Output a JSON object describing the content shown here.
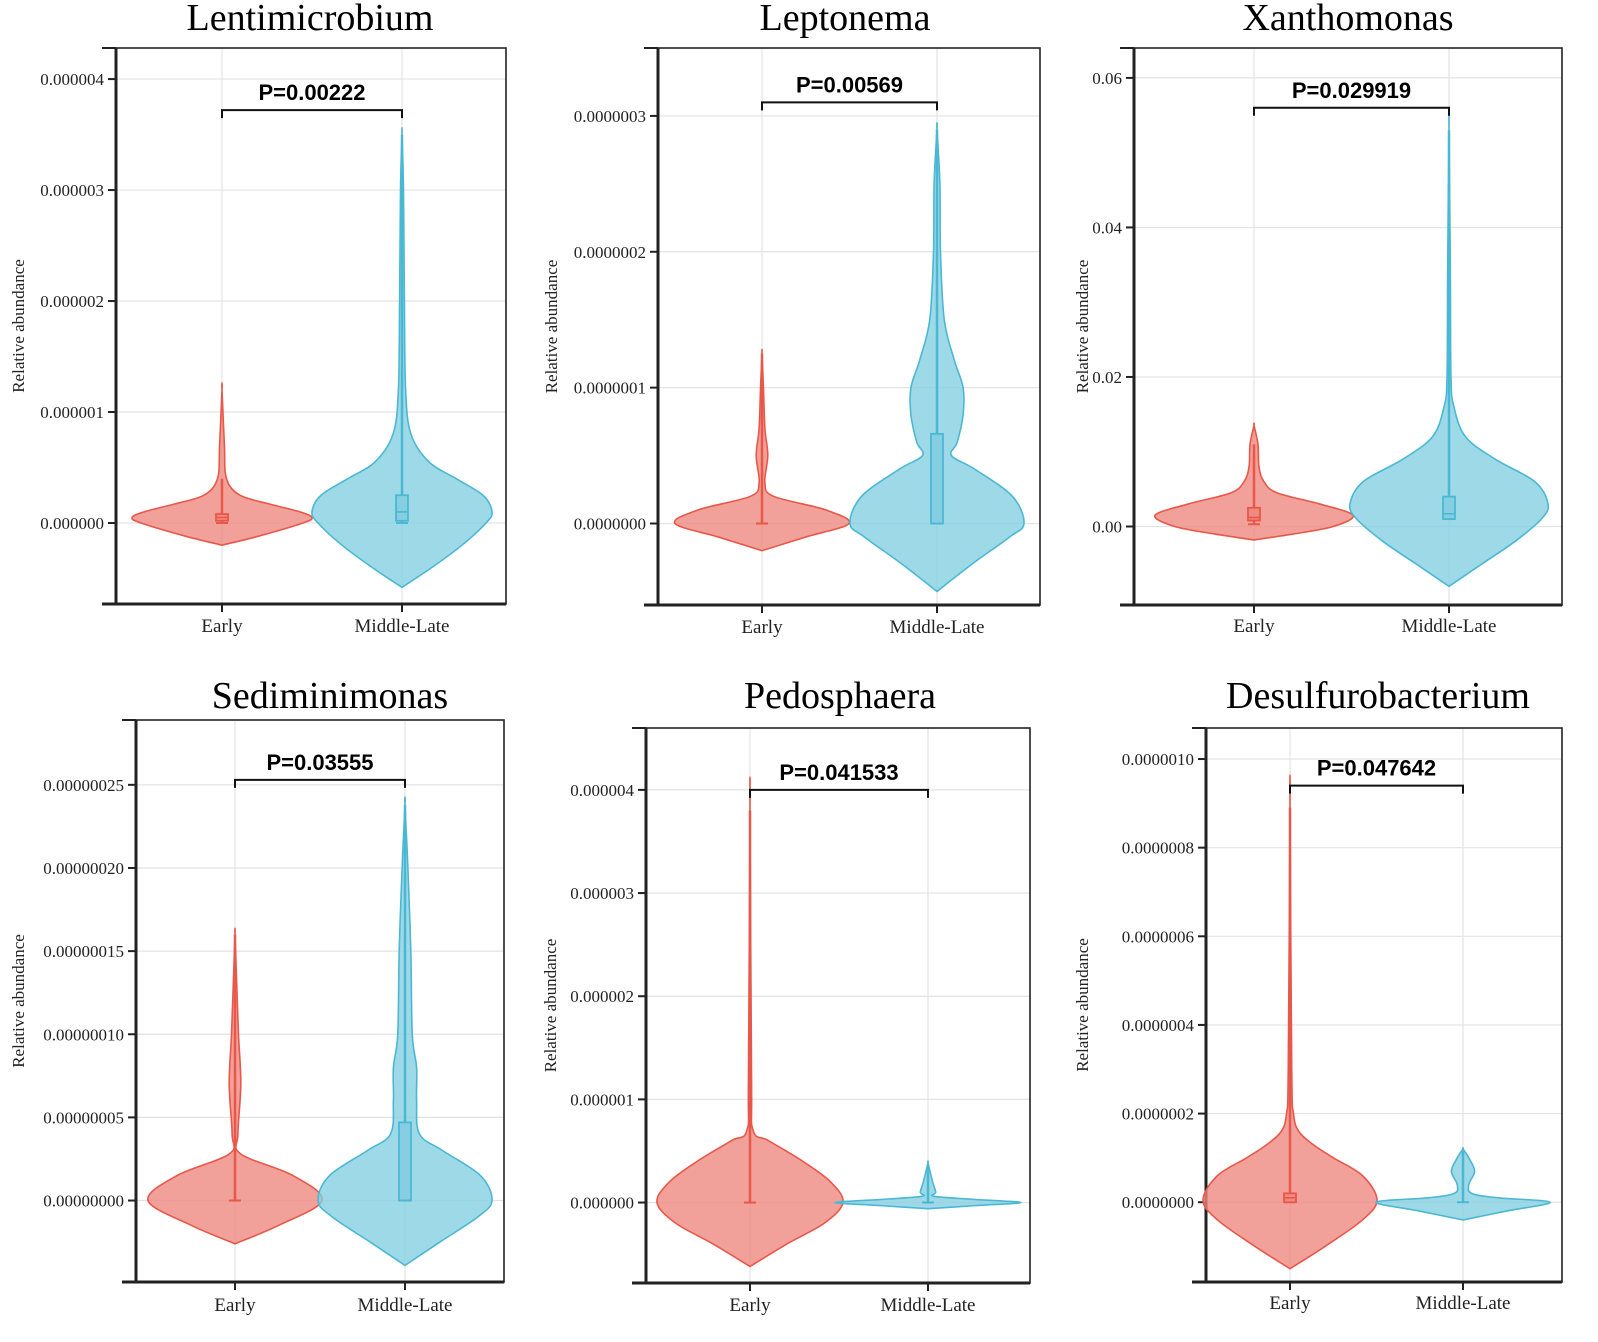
{
  "figure": {
    "colors": {
      "early": "#e8584a",
      "early_fill": "#ee8a80",
      "middle_late": "#4bb8d3",
      "middle_late_fill": "#86cfe2"
    }
  },
  "chart_data": [
    {
      "type": "violin",
      "title": "Lentimicrobium",
      "ylabel": "Relative abundance",
      "xlabel": "",
      "categories": [
        "Early",
        "Middle-Late"
      ],
      "yticks": [
        0.0,
        1e-06,
        2e-06,
        3e-06,
        4e-06
      ],
      "ytick_labels": [
        "0.000000",
        "0.000001",
        "0.000002",
        "0.000003",
        "0.000004"
      ],
      "ylim": [
        -7.3e-07,
        4.28e-06
      ],
      "grid": true,
      "p_value_label": "P=0.00222",
      "bracket_y": 3.72e-06,
      "groups": [
        {
          "name": "Early",
          "density_min": -2e-07,
          "density_max": 1.2e-06,
          "mode": 5e-08,
          "max_halfwidth": 0.3,
          "q1": 2e-08,
          "median": 5e-08,
          "q3": 8e-08,
          "whisker_low": 0.0,
          "whisker_high": 4e-07,
          "profile": [
            [
              -2e-07,
              0
            ],
            [
              -1.2e-07,
              0.12
            ],
            [
              0.0,
              0.27
            ],
            [
              5e-08,
              0.3
            ],
            [
              1e-07,
              0.26
            ],
            [
              1.7e-07,
              0.16
            ],
            [
              2.5e-07,
              0.06
            ],
            [
              4e-07,
              0.015
            ],
            [
              7e-07,
              0.008
            ],
            [
              1.2e-06,
              0
            ]
          ]
        },
        {
          "name": "Middle-Late",
          "density_min": -5.8e-07,
          "density_max": 3.5e-06,
          "mode": 1e-07,
          "max_halfwidth": 0.3,
          "q1": 2e-08,
          "median": 1e-07,
          "q3": 2.5e-07,
          "whisker_low": 0.0,
          "whisker_high": 3.5e-06,
          "profile": [
            [
              -5.8e-07,
              0
            ],
            [
              -4e-07,
              0.1
            ],
            [
              -2e-07,
              0.2
            ],
            [
              0.0,
              0.28
            ],
            [
              1e-07,
              0.3
            ],
            [
              2.5e-07,
              0.27
            ],
            [
              4e-07,
              0.18
            ],
            [
              5.5e-07,
              0.09
            ],
            [
              8e-07,
              0.03
            ],
            [
              1.2e-06,
              0.012
            ],
            [
              2e-06,
              0.008
            ],
            [
              3e-06,
              0.005
            ],
            [
              3.5e-06,
              0
            ]
          ]
        }
      ]
    },
    {
      "type": "violin",
      "title": "Leptonema",
      "ylabel": "Relative abundance",
      "xlabel": "",
      "categories": [
        "Early",
        "Middle-Late"
      ],
      "yticks": [
        0.0,
        1e-07,
        2e-07,
        3e-07
      ],
      "ytick_labels": [
        "0.0000000",
        "0.0000001",
        "0.0000002",
        "0.0000003"
      ],
      "ylim": [
        -6e-08,
        3.5e-07
      ],
      "grid": true,
      "p_value_label": "P=0.00569",
      "bracket_y": 3.1e-07,
      "groups": [
        {
          "name": "Early",
          "density_min": -2e-08,
          "density_max": 1.25e-07,
          "mode": 0.0,
          "max_halfwidth": 0.3,
          "q1": 0.0,
          "median": 0.0,
          "q3": 0.0,
          "whisker_low": 0.0,
          "whisker_high": 1.25e-07,
          "profile": [
            [
              -2e-08,
              0
            ],
            [
              -1e-08,
              0.15
            ],
            [
              0.0,
              0.3
            ],
            [
              1e-08,
              0.22
            ],
            [
              2e-08,
              0.04
            ],
            [
              3e-08,
              0.01
            ],
            [
              5e-08,
              0.02
            ],
            [
              7e-08,
              0.01
            ],
            [
              1e-07,
              0.005
            ],
            [
              1.25e-07,
              0
            ]
          ]
        },
        {
          "name": "Middle-Late",
          "density_min": -5e-08,
          "density_max": 2.9e-07,
          "mode": 0.0,
          "max_halfwidth": 0.3,
          "q1": 0.0,
          "median": 0.0,
          "q3": 6.6e-08,
          "whisker_low": 0.0,
          "whisker_high": 2.9e-07,
          "profile": [
            [
              -5e-08,
              0
            ],
            [
              -3e-08,
              0.12
            ],
            [
              -1e-08,
              0.25
            ],
            [
              0.0,
              0.3
            ],
            [
              2e-08,
              0.26
            ],
            [
              4e-08,
              0.13
            ],
            [
              5e-08,
              0.05
            ],
            [
              6e-08,
              0.07
            ],
            [
              8e-08,
              0.09
            ],
            [
              1e-07,
              0.09
            ],
            [
              1.2e-07,
              0.06
            ],
            [
              1.5e-07,
              0.025
            ],
            [
              2e-07,
              0.012
            ],
            [
              2.5e-07,
              0.01
            ],
            [
              2.9e-07,
              0
            ]
          ]
        }
      ]
    },
    {
      "type": "violin",
      "title": "Xanthomonas",
      "ylabel": "Relative abundance",
      "xlabel": "",
      "categories": [
        "Early",
        "Middle-Late"
      ],
      "yticks": [
        0.0,
        0.02,
        0.04,
        0.06
      ],
      "ytick_labels": [
        "0.00",
        "0.02",
        "0.04",
        "0.06"
      ],
      "ylim": [
        -0.0105,
        0.064
      ],
      "grid": true,
      "p_value_label": "P=0.029919",
      "bracket_y": 0.056,
      "groups": [
        {
          "name": "Early",
          "density_min": -0.0018,
          "density_max": 0.0135,
          "mode": 0.0015,
          "max_halfwidth": 0.3,
          "q1": 0.0008,
          "median": 0.0012,
          "q3": 0.0025,
          "whisker_low": 0.0003,
          "whisker_high": 0.011,
          "profile": [
            [
              -0.0018,
              0
            ],
            [
              -0.001,
              0.12
            ],
            [
              0.0,
              0.24
            ],
            [
              0.0015,
              0.3
            ],
            [
              0.003,
              0.2
            ],
            [
              0.0045,
              0.07
            ],
            [
              0.006,
              0.03
            ],
            [
              0.008,
              0.015
            ],
            [
              0.011,
              0.012
            ],
            [
              0.0135,
              0
            ]
          ]
        },
        {
          "name": "Middle-Late",
          "density_min": -0.008,
          "density_max": 0.053,
          "mode": 0.003,
          "max_halfwidth": 0.3,
          "q1": 0.001,
          "median": 0.0017,
          "q3": 0.004,
          "whisker_low": 0.001,
          "whisker_high": 0.053,
          "profile": [
            [
              -0.008,
              0
            ],
            [
              -0.005,
              0.1
            ],
            [
              -0.002,
              0.2
            ],
            [
              0.001,
              0.28
            ],
            [
              0.003,
              0.3
            ],
            [
              0.006,
              0.26
            ],
            [
              0.009,
              0.14
            ],
            [
              0.012,
              0.05
            ],
            [
              0.016,
              0.015
            ],
            [
              0.02,
              0.006
            ],
            [
              0.035,
              0.004
            ],
            [
              0.053,
              0
            ]
          ]
        }
      ]
    },
    {
      "type": "violin",
      "title": "Sediminimonas",
      "ylabel": "Relative abundance",
      "xlabel": "",
      "categories": [
        "Early",
        "Middle-Late"
      ],
      "yticks": [
        0.0,
        5e-08,
        1e-07,
        1.5e-07,
        2e-07,
        2.5e-07
      ],
      "ytick_labels": [
        "0.00000000",
        "0.00000005",
        "0.00000010",
        "0.00000015",
        "0.00000020",
        "0.00000025"
      ],
      "ylim": [
        -4.9e-08,
        2.89e-07
      ],
      "grid": true,
      "p_value_label": "P=0.03555",
      "bracket_y": 2.53e-07,
      "groups": [
        {
          "name": "Early",
          "density_min": -2.6e-08,
          "density_max": 1.6e-07,
          "mode": 0.0,
          "max_halfwidth": 0.3,
          "q1": 0.0,
          "median": 0.0,
          "q3": 0.0,
          "whisker_low": 0.0,
          "whisker_high": 1.6e-07,
          "profile": [
            [
              -2.6e-08,
              0
            ],
            [
              -1.5e-08,
              0.15
            ],
            [
              0.0,
              0.3
            ],
            [
              1.5e-08,
              0.2
            ],
            [
              2.8e-08,
              0.02
            ],
            [
              4e-08,
              0.01
            ],
            [
              7e-08,
              0.02
            ],
            [
              1e-07,
              0.012
            ],
            [
              1.3e-07,
              0.006
            ],
            [
              1.6e-07,
              0
            ]
          ]
        },
        {
          "name": "Middle-Late",
          "density_min": -3.9e-08,
          "density_max": 2.38e-07,
          "mode": 0.0,
          "max_halfwidth": 0.3,
          "q1": 0.0,
          "median": 0.0,
          "q3": 4.7e-08,
          "whisker_low": 0.0,
          "whisker_high": 2.38e-07,
          "profile": [
            [
              -3.9e-08,
              0
            ],
            [
              -2.5e-08,
              0.12
            ],
            [
              -1e-08,
              0.25
            ],
            [
              0.0,
              0.3
            ],
            [
              1.5e-08,
              0.26
            ],
            [
              3e-08,
              0.13
            ],
            [
              4e-08,
              0.05
            ],
            [
              6e-08,
              0.04
            ],
            [
              8e-08,
              0.04
            ],
            [
              1e-07,
              0.025
            ],
            [
              1.5e-07,
              0.02
            ],
            [
              2e-07,
              0.01
            ],
            [
              2.38e-07,
              0
            ]
          ]
        }
      ]
    },
    {
      "type": "violin",
      "title": "Pedosphaera",
      "ylabel": "Relative abundance",
      "xlabel": "",
      "categories": [
        "Early",
        "Middle-Late"
      ],
      "yticks": [
        0.0,
        1e-06,
        2e-06,
        3e-06,
        4e-06
      ],
      "ytick_labels": [
        "0.000000",
        "0.000001",
        "0.000002",
        "0.000003",
        "0.000004"
      ],
      "ylim": [
        -7.8e-07,
        4.6e-06
      ],
      "grid": true,
      "p_value_label": "P=0.041533",
      "bracket_y": 4e-06,
      "groups": [
        {
          "name": "Early",
          "density_min": -6.2e-07,
          "density_max": 3.8e-06,
          "mode": 0.0,
          "max_halfwidth": 0.3,
          "q1": 0.0,
          "median": 0.0,
          "q3": 0.0,
          "whisker_low": 0.0,
          "whisker_high": 3.8e-06,
          "profile": [
            [
              -6.2e-07,
              0
            ],
            [
              -4e-07,
              0.12
            ],
            [
              -2e-07,
              0.24
            ],
            [
              0.0,
              0.3
            ],
            [
              2e-07,
              0.26
            ],
            [
              4e-07,
              0.17
            ],
            [
              6e-07,
              0.06
            ],
            [
              7e-07,
              0.01
            ],
            [
              1.2e-06,
              0.005
            ],
            [
              3.8e-06,
              0
            ]
          ]
        },
        {
          "name": "Middle-Late",
          "density_min": -6e-08,
          "density_max": 3.8e-07,
          "mode": 0.0,
          "max_halfwidth": 0.3,
          "q1": 0.0,
          "median": 0.0,
          "q3": 0.0,
          "whisker_low": 0.0,
          "whisker_high": 3.8e-07,
          "profile": [
            [
              -6e-08,
              0
            ],
            [
              -3e-08,
              0.15
            ],
            [
              0.0,
              0.3
            ],
            [
              3e-08,
              0.15
            ],
            [
              6e-08,
              0.02
            ],
            [
              1e-07,
              0.025
            ],
            [
              2e-07,
              0.015
            ],
            [
              3.8e-07,
              0
            ]
          ]
        }
      ]
    },
    {
      "type": "violin",
      "title": "Desulfurobacterium",
      "ylabel": "Relative abundance",
      "xlabel": "",
      "categories": [
        "Early",
        "Middle-Late"
      ],
      "yticks": [
        0.0,
        2e-07,
        4e-07,
        6e-07,
        8e-07,
        1e-06
      ],
      "ytick_labels": [
        "0.0000000",
        "0.0000002",
        "0.0000004",
        "0.0000006",
        "0.0000008",
        "0.0000010"
      ],
      "ylim": [
        -1.8e-07,
        1.07e-06
      ],
      "grid": true,
      "p_value_label": "P=0.047642",
      "bracket_y": 9.4e-07,
      "groups": [
        {
          "name": "Early",
          "density_min": -1.5e-07,
          "density_max": 8.9e-07,
          "mode": 5e-09,
          "max_halfwidth": 0.3,
          "q1": 0.0,
          "median": 1e-08,
          "q3": 2e-08,
          "whisker_low": 0.0,
          "whisker_high": 8.9e-07,
          "profile": [
            [
              -1.5e-07,
              0
            ],
            [
              -1e-07,
              0.12
            ],
            [
              -4e-08,
              0.25
            ],
            [
              5e-09,
              0.3
            ],
            [
              6e-08,
              0.25
            ],
            [
              1e-07,
              0.15
            ],
            [
              1.3e-07,
              0.08
            ],
            [
              1.6e-07,
              0.03
            ],
            [
              2e-07,
              0.012
            ],
            [
              3e-07,
              0.006
            ],
            [
              8.9e-07,
              0
            ]
          ]
        },
        {
          "name": "Middle-Late",
          "density_min": -4e-08,
          "density_max": 1.2e-07,
          "mode": 0.0,
          "max_halfwidth": 0.3,
          "q1": 0.0,
          "median": 0.0,
          "q3": 0.0,
          "whisker_low": 0.0,
          "whisker_high": 1.2e-07,
          "profile": [
            [
              -4e-08,
              0
            ],
            [
              -2e-08,
              0.15
            ],
            [
              0.0,
              0.3
            ],
            [
              1e-08,
              0.12
            ],
            [
              2e-08,
              0.03
            ],
            [
              4e-08,
              0.02
            ],
            [
              7e-08,
              0.04
            ],
            [
              1e-07,
              0.02
            ],
            [
              1.2e-07,
              0
            ]
          ]
        }
      ]
    }
  ]
}
